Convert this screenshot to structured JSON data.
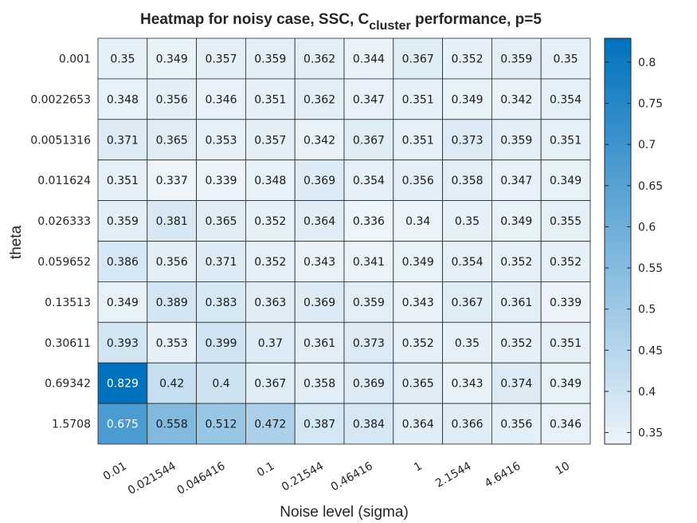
{
  "chart_data": {
    "type": "heatmap",
    "title": {
      "prefix": "Heatmap for noisy case, SSC, C",
      "subscript": "cluster",
      "suffix": " performance, p=5"
    },
    "xlabel": "Noise level (sigma)",
    "ylabel": "theta",
    "x_categories": [
      "0.01",
      "0.021544",
      "0.046416",
      "0.1",
      "0.21544",
      "0.46416",
      "1",
      "2.1544",
      "4.6416",
      "10"
    ],
    "y_categories": [
      "0.001",
      "0.0022653",
      "0.0051316",
      "0.011624",
      "0.026333",
      "0.059652",
      "0.13513",
      "0.30611",
      "0.69342",
      "1.5708"
    ],
    "cell_labels": [
      [
        "0.35",
        "0.349",
        "0.357",
        "0.359",
        "0.362",
        "0.344",
        "0.367",
        "0.352",
        "0.359",
        "0.35"
      ],
      [
        "0.348",
        "0.356",
        "0.346",
        "0.351",
        "0.362",
        "0.347",
        "0.351",
        "0.349",
        "0.342",
        "0.354"
      ],
      [
        "0.371",
        "0.365",
        "0.353",
        "0.357",
        "0.342",
        "0.367",
        "0.351",
        "0.373",
        "0.359",
        "0.351"
      ],
      [
        "0.351",
        "0.337",
        "0.339",
        "0.348",
        "0.369",
        "0.354",
        "0.356",
        "0.358",
        "0.347",
        "0.349"
      ],
      [
        "0.359",
        "0.381",
        "0.365",
        "0.352",
        "0.364",
        "0.336",
        "0.34",
        "0.35",
        "0.349",
        "0.355"
      ],
      [
        "0.386",
        "0.356",
        "0.371",
        "0.352",
        "0.343",
        "0.341",
        "0.349",
        "0.354",
        "0.352",
        "0.352"
      ],
      [
        "0.349",
        "0.389",
        "0.383",
        "0.363",
        "0.369",
        "0.359",
        "0.343",
        "0.367",
        "0.361",
        "0.339"
      ],
      [
        "0.393",
        "0.353",
        "0.399",
        "0.37",
        "0.361",
        "0.373",
        "0.352",
        "0.35",
        "0.352",
        "0.351"
      ],
      [
        "0.829",
        "0.42",
        "0.4",
        "0.367",
        "0.358",
        "0.369",
        "0.365",
        "0.343",
        "0.374",
        "0.349"
      ],
      [
        "0.675",
        "0.558",
        "0.512",
        "0.472",
        "0.387",
        "0.384",
        "0.364",
        "0.366",
        "0.356",
        "0.346"
      ]
    ],
    "colorbar": {
      "range": [
        0.336,
        0.829
      ],
      "ticks": [
        "0.35",
        "0.4",
        "0.45",
        "0.5",
        "0.55",
        "0.6",
        "0.65",
        "0.7",
        "0.75",
        "0.8"
      ],
      "colormap": [
        "#EDF4FA",
        "#0072BD"
      ]
    }
  }
}
